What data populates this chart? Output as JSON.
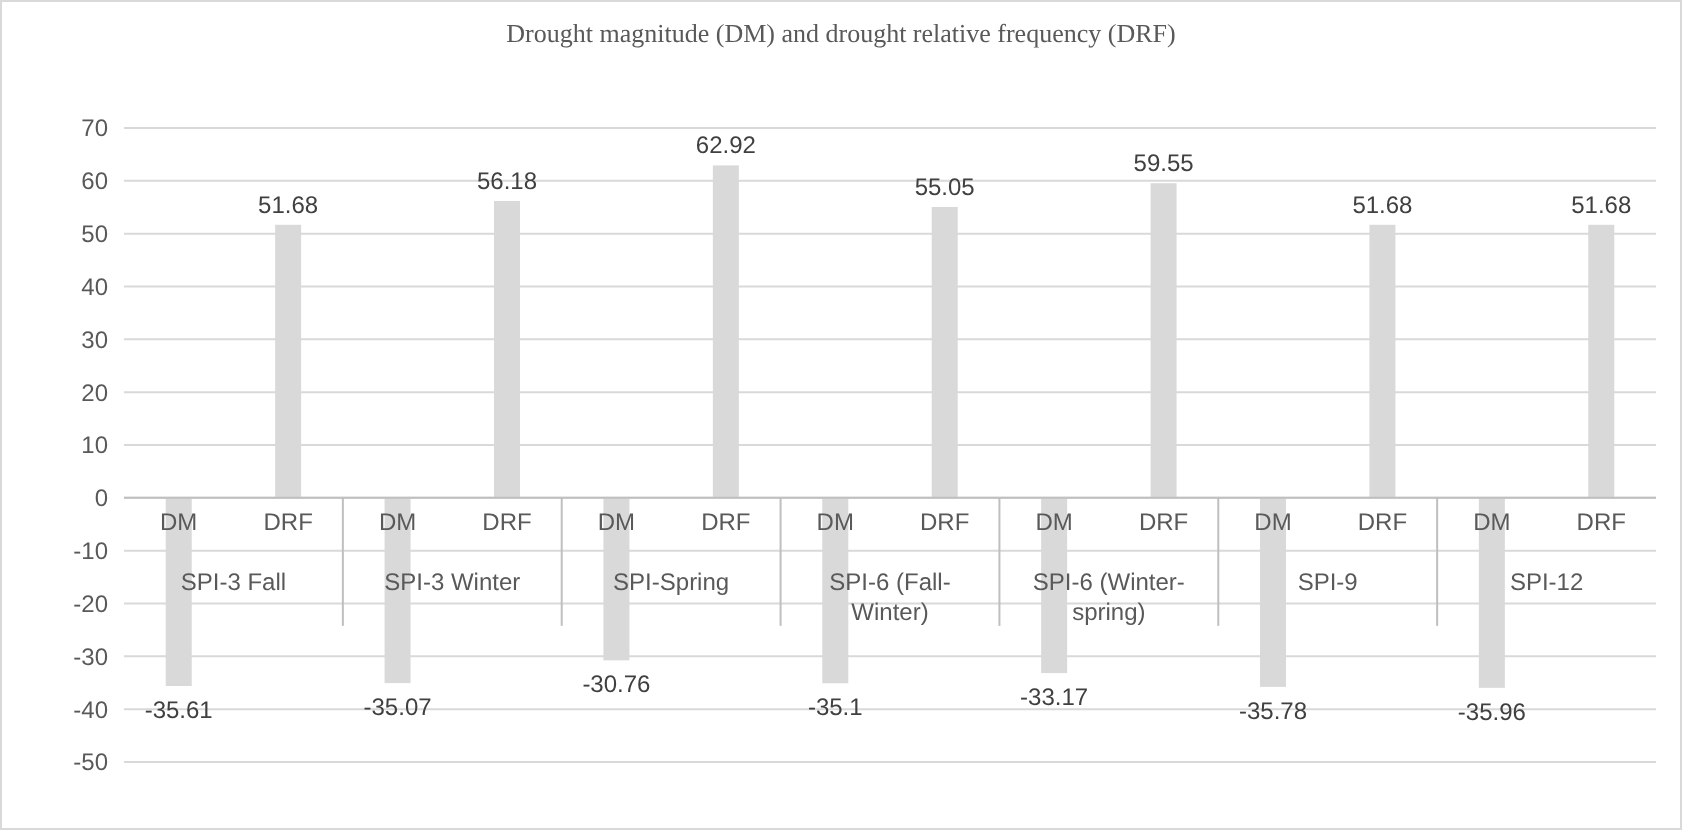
{
  "chart_data": {
    "type": "bar",
    "title": "Drought magnitude (DM) and drought relative frequency (DRF)",
    "categories": [
      "DM",
      "DRF",
      "DM",
      "DRF",
      "DM",
      "DRF",
      "DM",
      "DRF",
      "DM",
      "DRF",
      "DM",
      "DRF",
      "DM",
      "DRF"
    ],
    "values": [
      -35.61,
      51.68,
      -35.07,
      56.18,
      -30.76,
      62.92,
      -35.1,
      55.05,
      -33.17,
      59.55,
      -35.78,
      51.68,
      -35.96,
      51.68
    ],
    "color": "#d9d9d9",
    "data_labels": true,
    "grid": "y",
    "ylim": [
      -50,
      70
    ],
    "yticks": [
      -50,
      -40,
      -30,
      -20,
      -10,
      0,
      10,
      20,
      30,
      40,
      50,
      60,
      70
    ],
    "annotations": [
      "SPI-3 Fall",
      "SPI-3 Winter",
      "SPI-Spring",
      "SPI-6 (Fall-Winter)",
      "SPI-6 (Winter-spring)",
      "SPI-9",
      "SPI-12"
    ]
  }
}
